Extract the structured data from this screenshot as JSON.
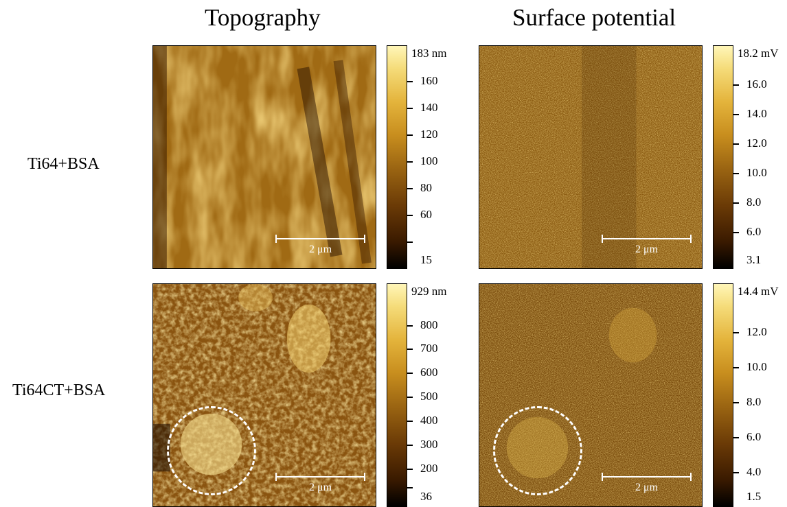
{
  "columns": {
    "topography": "Topography",
    "surface_potential": "Surface potential"
  },
  "rows": {
    "row1": "Ti64+BSA",
    "row2": "Ti64CT+BSA"
  },
  "scale_bar": "2 μm",
  "colorbars": {
    "topo1": {
      "max": "183 nm",
      "ticks": [
        "160",
        "140",
        "120",
        "100",
        "80",
        "60"
      ],
      "min": "15"
    },
    "sp1": {
      "max": "18.2 mV",
      "ticks": [
        "16.0",
        "14.0",
        "12.0",
        "10.0",
        "8.0",
        "6.0"
      ],
      "min": "3.1"
    },
    "topo2": {
      "max": "929 nm",
      "ticks": [
        "800",
        "700",
        "600",
        "500",
        "400",
        "300",
        "200"
      ],
      "min": "36"
    },
    "sp2": {
      "max": "14.4 mV",
      "ticks": [
        "12.0",
        "10.0",
        "8.0",
        "6.0",
        "4.0"
      ],
      "min": "1.5"
    }
  },
  "colors": {
    "colormap_low": "#000000",
    "colormap_mid": "#b07a18",
    "colormap_high": "#fff6b8",
    "marker": "#ffffff"
  }
}
